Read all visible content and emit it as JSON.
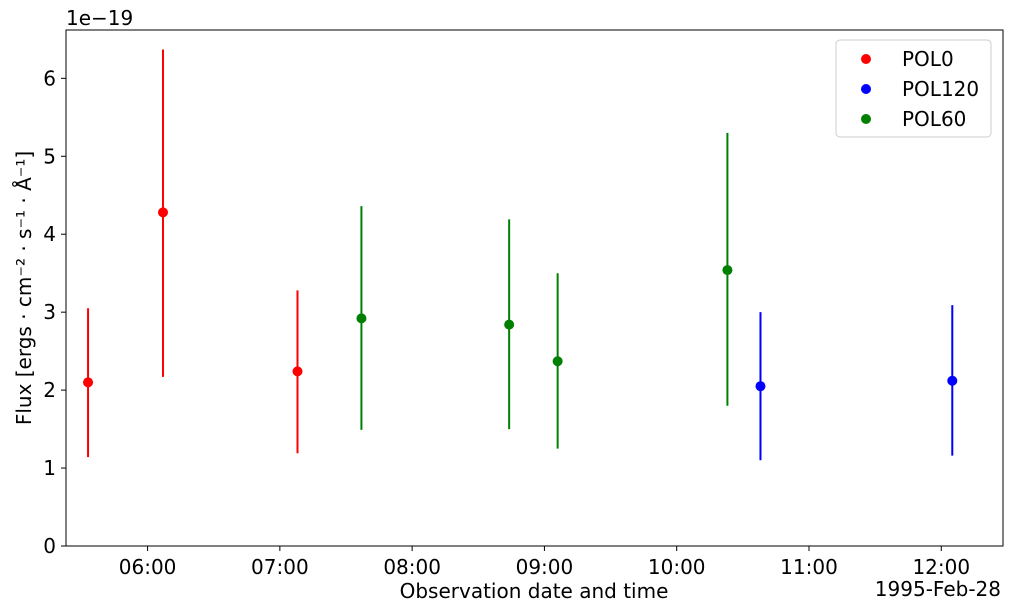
{
  "chart_data": {
    "type": "scatter",
    "title": "",
    "xlabel": "Observation date and time",
    "ylabel": "Flux [ergs · cm⁻² · s⁻¹ · Å⁻¹]",
    "y_offset_label": "1e−19",
    "x_offset_label": "1995-Feb-28",
    "x_ticks": [
      "06:00",
      "07:00",
      "08:00",
      "09:00",
      "10:00",
      "11:00",
      "12:00"
    ],
    "y_ticks": [
      "0",
      "1",
      "2",
      "3",
      "4",
      "5",
      "6"
    ],
    "xlim": [
      "05:23",
      "12:28"
    ],
    "ylim": [
      0,
      6.62
    ],
    "grid": false,
    "legend_position": "top-right",
    "series": [
      {
        "name": "POL0",
        "color": "#ff0000",
        "points": [
          {
            "x": "05:33",
            "y": 2.1,
            "err_low": 1.14,
            "err_high": 3.05
          },
          {
            "x": "06:07",
            "y": 4.28,
            "err_low": 2.17,
            "err_high": 6.37
          },
          {
            "x": "07:08",
            "y": 2.24,
            "err_low": 1.19,
            "err_high": 3.28
          }
        ]
      },
      {
        "name": "POL120",
        "color": "#0000ff",
        "points": [
          {
            "x": "10:38",
            "y": 2.05,
            "err_low": 1.1,
            "err_high": 3.0
          },
          {
            "x": "12:05",
            "y": 2.12,
            "err_low": 1.16,
            "err_high": 3.09
          }
        ]
      },
      {
        "name": "POL60",
        "color": "#008000",
        "points": [
          {
            "x": "07:37",
            "y": 2.92,
            "err_low": 1.49,
            "err_high": 4.36
          },
          {
            "x": "08:44",
            "y": 2.84,
            "err_low": 1.5,
            "err_high": 4.19
          },
          {
            "x": "09:06",
            "y": 2.37,
            "err_low": 1.25,
            "err_high": 3.5
          },
          {
            "x": "10:23",
            "y": 3.54,
            "err_low": 1.8,
            "err_high": 5.3
          }
        ]
      }
    ]
  }
}
